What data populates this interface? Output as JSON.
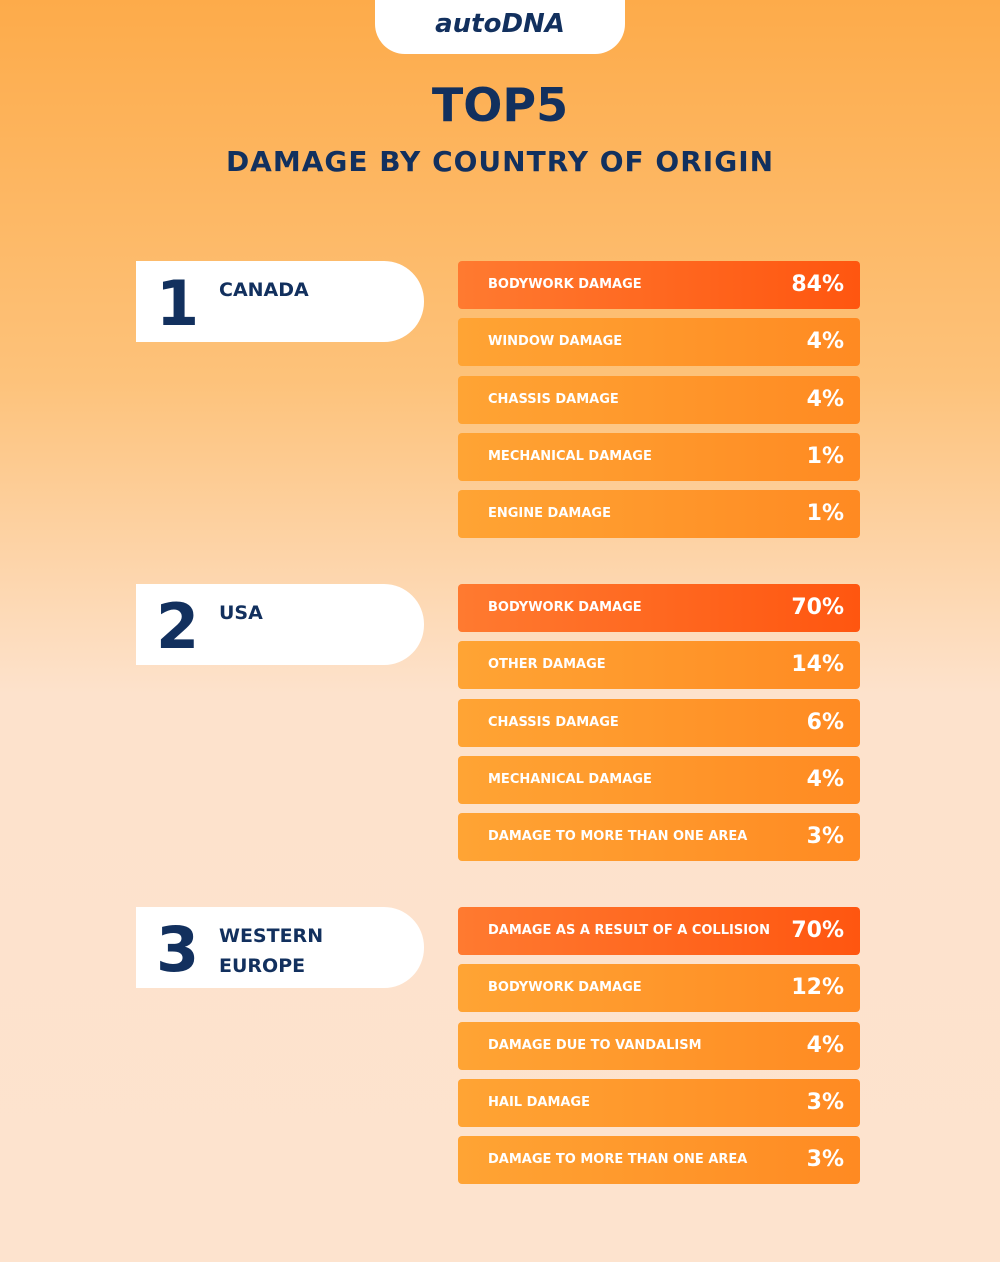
{
  "header": {
    "logo": "autoDNA",
    "title": "TOP5",
    "subtitle": "DAMAGE BY COUNTRY OF ORIGIN"
  },
  "sections": [
    {
      "rank": "1",
      "country": "CANADA",
      "items": [
        {
          "label": "BODYWORK DAMAGE",
          "value": "84%"
        },
        {
          "label": "WINDOW DAMAGE",
          "value": "4%"
        },
        {
          "label": "CHASSIS DAMAGE",
          "value": "4%"
        },
        {
          "label": "MECHANICAL DAMAGE",
          "value": "1%"
        },
        {
          "label": "ENGINE DAMAGE",
          "value": "1%"
        }
      ]
    },
    {
      "rank": "2",
      "country": "USA",
      "items": [
        {
          "label": "BODYWORK DAMAGE",
          "value": "70%"
        },
        {
          "label": "OTHER DAMAGE",
          "value": "14%"
        },
        {
          "label": "CHASSIS DAMAGE",
          "value": "6%"
        },
        {
          "label": "MECHANICAL DAMAGE",
          "value": "4%"
        },
        {
          "label": "DAMAGE TO MORE THAN ONE AREA",
          "value": "3%"
        }
      ]
    },
    {
      "rank": "3",
      "country": "WESTERN EUROPE",
      "items": [
        {
          "label": "DAMAGE AS A RESULT OF A COLLISION",
          "value": "70%"
        },
        {
          "label": "BODYWORK DAMAGE",
          "value": "12%"
        },
        {
          "label": "DAMAGE DUE TO VANDALISM",
          "value": "4%"
        },
        {
          "label": "HAIL DAMAGE",
          "value": "3%"
        },
        {
          "label": "DAMAGE TO MORE THAN ONE AREA",
          "value": "3%"
        }
      ]
    }
  ]
}
